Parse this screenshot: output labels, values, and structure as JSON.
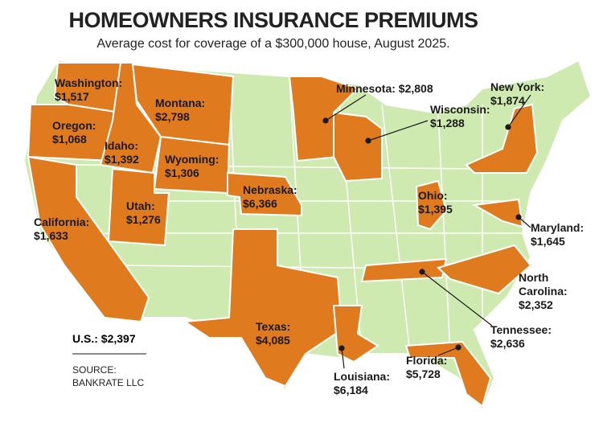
{
  "header": {
    "title": "HOMEOWNERS INSURANCE PREMIUMS",
    "subtitle": "Average cost for coverage of a $300,000 house, August 2025."
  },
  "labels": [
    {
      "name": "Washington:",
      "value": "$1,517"
    },
    {
      "name": "Oregon:",
      "value": "$1,068"
    },
    {
      "name": "California:",
      "value": "$1,633"
    },
    {
      "name": "Idaho:",
      "value": "$1,392"
    },
    {
      "name": "Montana:",
      "value": "$2,798"
    },
    {
      "name": "Wyoming:",
      "value": "$1,306"
    },
    {
      "name": "Utah:",
      "value": "$1,276"
    },
    {
      "name": "Nebraska:",
      "value": "$6,366"
    },
    {
      "name": "Texas:",
      "value": "$4,085"
    },
    {
      "name": "Louisiana:",
      "value": "$6,184"
    },
    {
      "name": "Minnesota:",
      "value": "$2,808"
    },
    {
      "name": "Wisconsin:",
      "value": "$1,288"
    },
    {
      "name": "New York:",
      "value": "$1,874"
    },
    {
      "name": "Ohio:",
      "value": "$1,395"
    },
    {
      "name": "Maryland:",
      "value": "$1,645"
    },
    {
      "name": "North Carolina:",
      "value": "$2,352"
    },
    {
      "name": "Tennessee:",
      "value": "$2,636"
    },
    {
      "name": "Florida:",
      "value": "$5,728"
    }
  ],
  "footer": {
    "us_average": "U.S.: $2,397",
    "source": [
      "SOURCE:",
      "BANKRATE LLC"
    ]
  }
}
